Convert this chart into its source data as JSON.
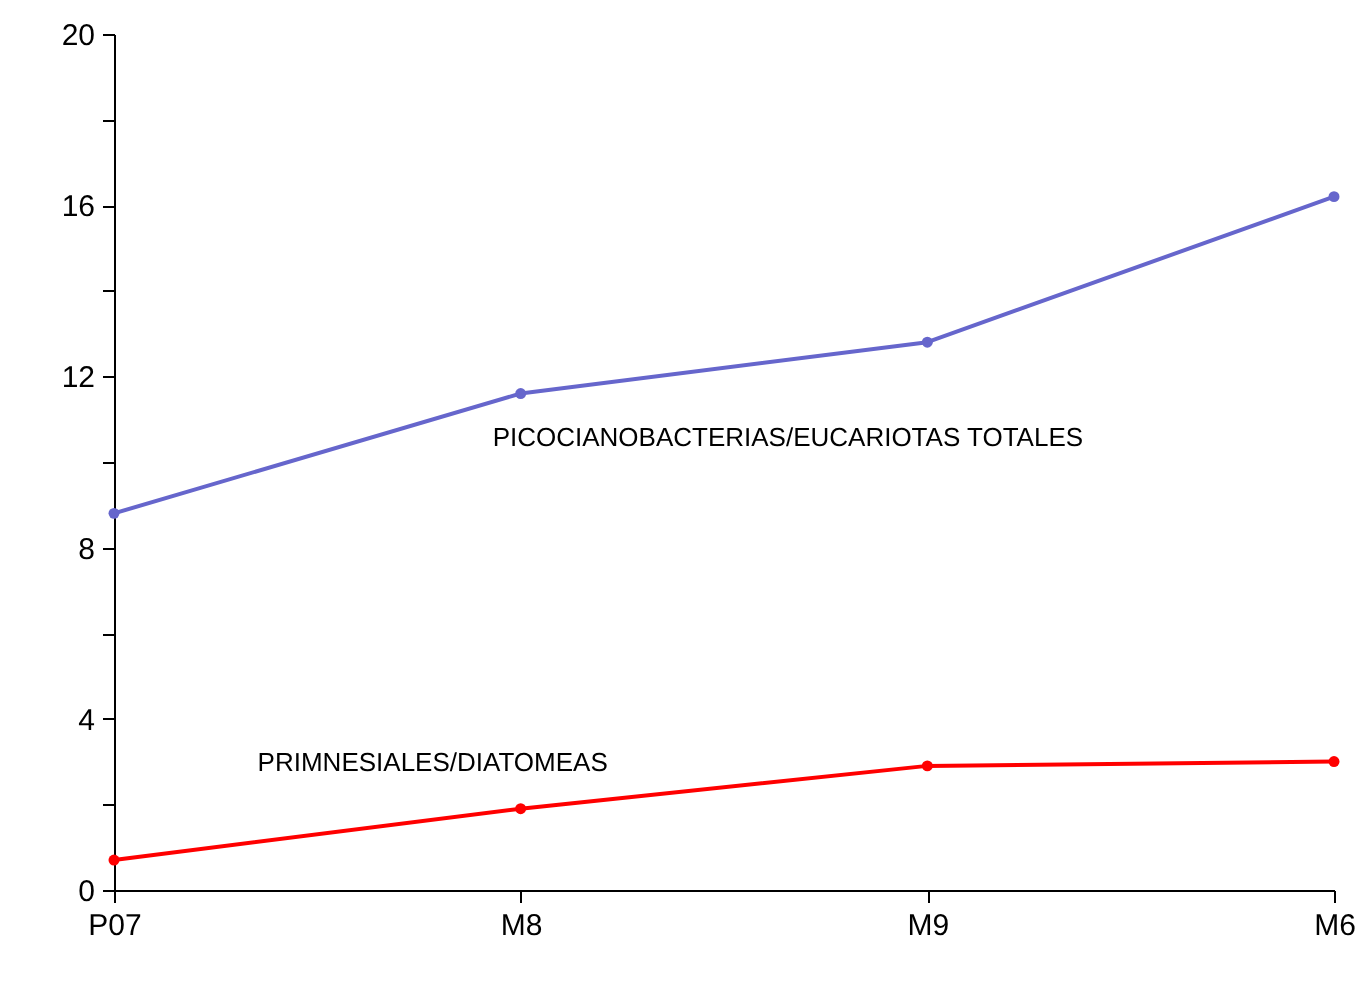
{
  "chart_data": {
    "type": "line",
    "categories": [
      "P07",
      "M8",
      "M9",
      "M6"
    ],
    "series": [
      {
        "name": "PICOCIANOBACTERIAS/EUCARIOTAS TOTALES",
        "color": "#6666cc",
        "values": [
          8.8,
          11.6,
          12.8,
          16.2
        ]
      },
      {
        "name": "PRIMNESIALES/DIATOMEAS",
        "color": "#ff0000",
        "values": [
          0.7,
          1.9,
          2.9,
          3.0
        ]
      }
    ],
    "ylim": [
      0,
      20
    ],
    "yticks": [
      0,
      {
        "value": 2,
        "label": null
      },
      4,
      {
        "value": 6,
        "label": null
      },
      8,
      {
        "value": 10,
        "label": null
      },
      12,
      {
        "value": 14,
        "label": null
      },
      16,
      {
        "value": 18,
        "label": null
      },
      20
    ],
    "grid": false,
    "marker": "circle",
    "line_style": "solid"
  }
}
